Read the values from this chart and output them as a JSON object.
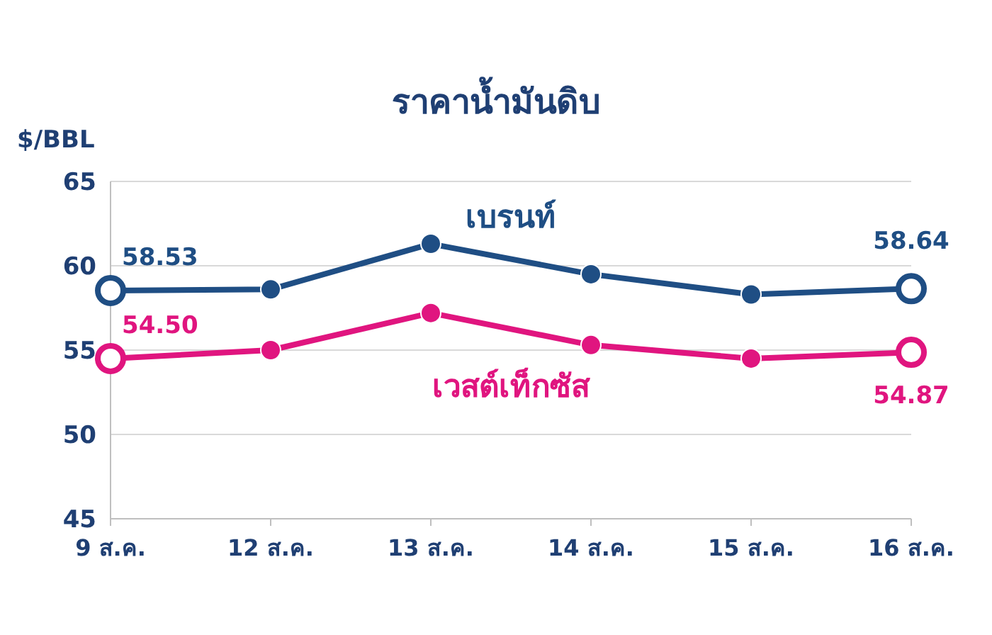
{
  "chart_data": {
    "type": "line",
    "title": "ราคาน้ำมันดิบ",
    "ylabel": "$/BBL",
    "categories": [
      "9 ส.ค.",
      "12 ส.ค.",
      "13 ส.ค.",
      "14 ส.ค.",
      "15 ส.ค.",
      "16 ส.ค."
    ],
    "series": [
      {
        "name": "เบรนท์",
        "color": "#1f4e84",
        "values": [
          58.53,
          58.6,
          61.3,
          59.5,
          58.3,
          58.64
        ],
        "value_labels": [
          "58.53",
          null,
          null,
          null,
          null,
          "58.64"
        ]
      },
      {
        "name": "เวสต์เท็กซัส",
        "color": "#e0157f",
        "values": [
          54.5,
          55.0,
          57.2,
          55.3,
          54.5,
          54.87
        ],
        "value_labels": [
          "54.50",
          null,
          null,
          null,
          null,
          "54.87"
        ]
      }
    ],
    "ylim": [
      45,
      65
    ],
    "yticks": [
      45,
      50,
      55,
      60,
      65
    ],
    "grid": "y",
    "marker": "circle",
    "line_style": "solid"
  }
}
